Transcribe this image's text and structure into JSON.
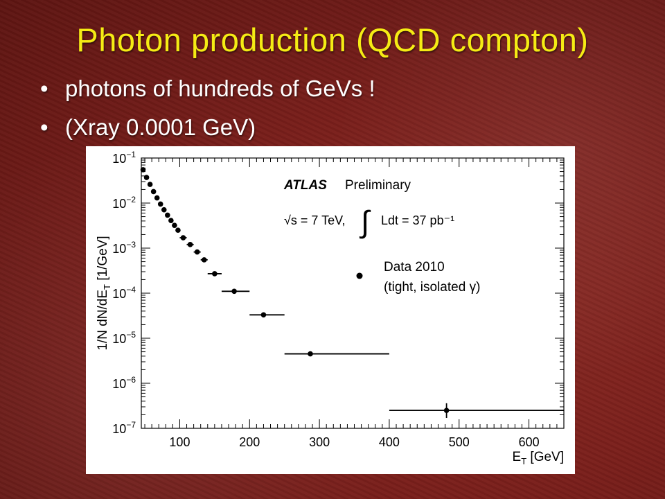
{
  "slide": {
    "title": "Photon production (QCD compton)",
    "bullets": [
      "photons of hundreds of GeVs !",
      "(Xray 0.0001 GeV)"
    ],
    "colors": {
      "title": "#f5ec14",
      "text": "#ffffff",
      "background": "#7a1f1b"
    }
  },
  "chart_data": {
    "type": "scatter",
    "xlabel": "E_T [GeV]",
    "ylabel": "1/N dN/dE_T [1/GeV]",
    "xlim": [
      45,
      650
    ],
    "ylim_exponent": [
      -7,
      -1
    ],
    "yscale": "log",
    "x_ticks": [
      "100",
      "200",
      "300",
      "400",
      "500",
      "600"
    ],
    "y_ticks": [
      "10^-1",
      "10^-2",
      "10^-3",
      "10^-4",
      "10^-5",
      "10^-6",
      "10^-7"
    ],
    "legend": {
      "name": "Data 2010",
      "detail": "(tight, isolated γ)",
      "position": "right"
    },
    "annotations": {
      "experiment": "ATLAS",
      "status": "Preliminary",
      "energy": "√s = 7 TeV,",
      "luminosity": "Ldt = 37 pb⁻¹"
    },
    "series": [
      {
        "name": "Data 2010",
        "points": [
          {
            "x": 47.5,
            "y": 0.055,
            "xlo": 45,
            "xhi": 50
          },
          {
            "x": 52.5,
            "y": 0.037,
            "xlo": 50,
            "xhi": 55
          },
          {
            "x": 57.5,
            "y": 0.026,
            "xlo": 55,
            "xhi": 60
          },
          {
            "x": 62.5,
            "y": 0.018,
            "xlo": 60,
            "xhi": 65
          },
          {
            "x": 67.5,
            "y": 0.013,
            "xlo": 65,
            "xhi": 70
          },
          {
            "x": 72.5,
            "y": 0.0095,
            "xlo": 70,
            "xhi": 75
          },
          {
            "x": 77.5,
            "y": 0.0071,
            "xlo": 75,
            "xhi": 80
          },
          {
            "x": 82.5,
            "y": 0.0054,
            "xlo": 80,
            "xhi": 85
          },
          {
            "x": 87.5,
            "y": 0.0041,
            "xlo": 85,
            "xhi": 90
          },
          {
            "x": 92.5,
            "y": 0.0032,
            "xlo": 90,
            "xhi": 95
          },
          {
            "x": 97.5,
            "y": 0.0025,
            "xlo": 95,
            "xhi": 100
          },
          {
            "x": 105,
            "y": 0.0017,
            "xlo": 100,
            "xhi": 110
          },
          {
            "x": 115,
            "y": 0.0012,
            "xlo": 110,
            "xhi": 120
          },
          {
            "x": 125,
            "y": 0.00082,
            "xlo": 120,
            "xhi": 130
          },
          {
            "x": 135,
            "y": 0.00055,
            "xlo": 130,
            "xhi": 140
          },
          {
            "x": 150,
            "y": 0.00027,
            "xlo": 140,
            "xhi": 160
          },
          {
            "x": 178,
            "y": 0.00011,
            "xlo": 160,
            "xhi": 200
          },
          {
            "x": 220,
            "y": 3.3e-05,
            "xlo": 200,
            "xhi": 250
          },
          {
            "x": 287,
            "y": 4.5e-06,
            "xlo": 250,
            "xhi": 400
          },
          {
            "x": 482,
            "y": 2.5e-07,
            "xlo": 400,
            "xhi": 650,
            "ylo": 1.7e-07,
            "yhi": 3.6e-07
          }
        ]
      }
    ]
  }
}
